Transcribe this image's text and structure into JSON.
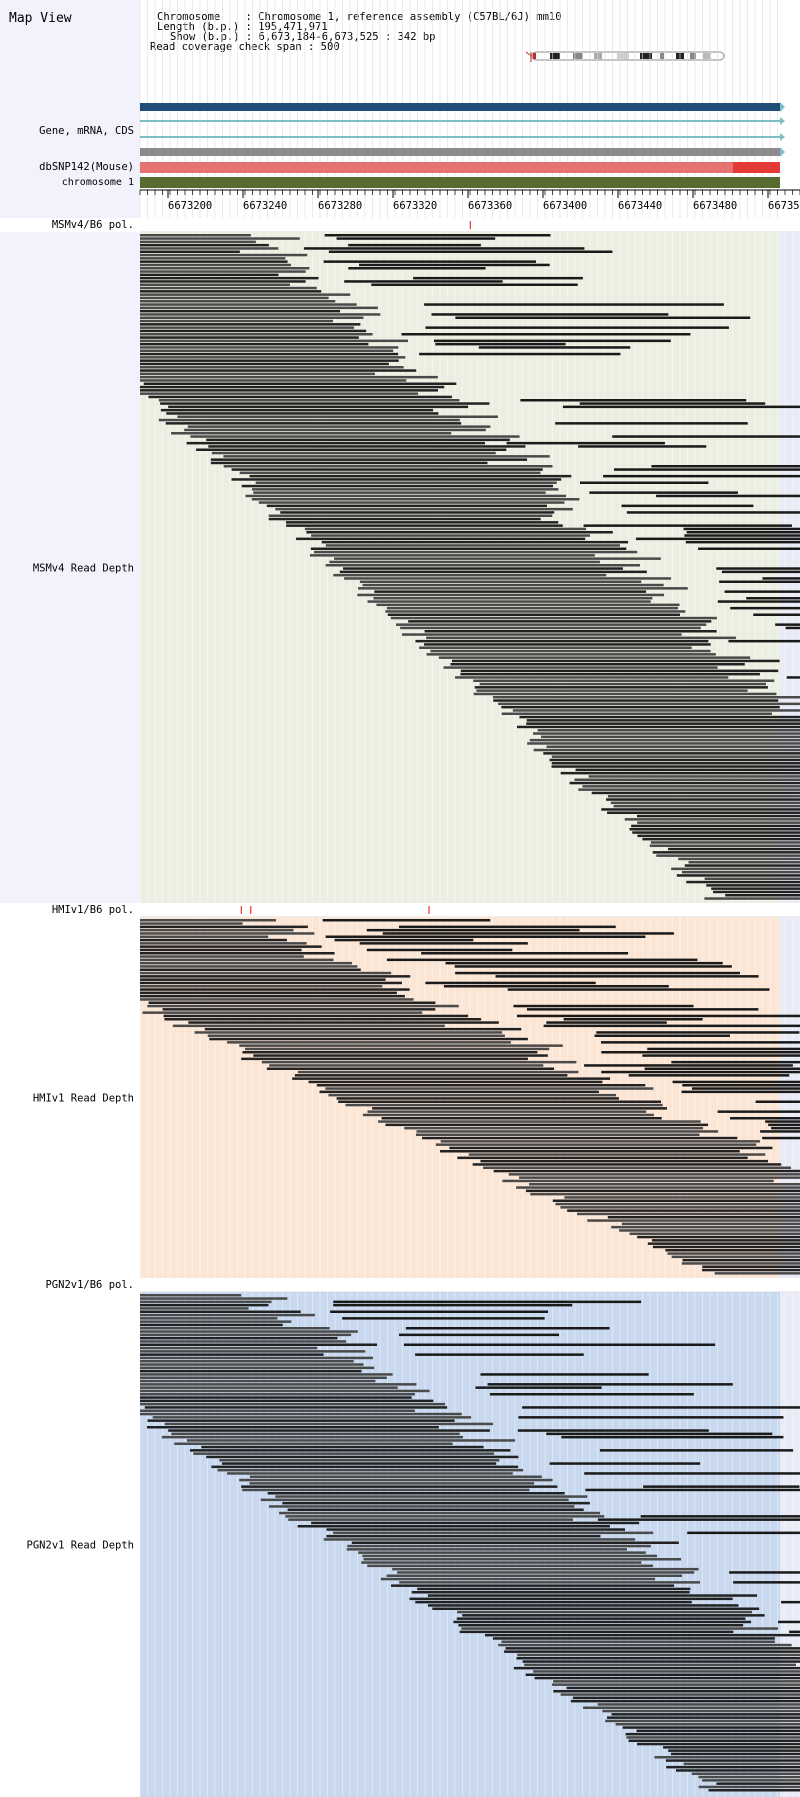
{
  "app": {
    "title": "Map View"
  },
  "info": {
    "chromosome_line": "Chromosome    : Chromosome 1, reference assembly (C57BL/6J) mm10",
    "length_line": "Length (b.p.) : 195,471,971",
    "show_line": "Show (b.p.) : 6,673,184-6,673,525 : 342 bp",
    "coverage_line": "Read coverage check span : 500"
  },
  "tracks": {
    "gene_label": "Gene, mRNA, CDS",
    "snp_label": "dbSNP142(Mouse)",
    "chrom_label": "chromosome 1"
  },
  "ruler": {
    "ticks": [
      "6673200",
      "6673240",
      "6673280",
      "6673320",
      "6673360",
      "6673400",
      "6673440",
      "6673480",
      "66735"
    ]
  },
  "samples": [
    {
      "id": "msmv4",
      "pol_label": "MSMv4/B6 pol.",
      "depth_label": "MSMv4 Read Depth",
      "pol_marks_bp": [
        6673360
      ],
      "pattern": "staircase"
    },
    {
      "id": "hmiv1",
      "pol_label": "HMIv1/B6 pol.",
      "depth_label": "HMIv1 Read Depth",
      "pol_marks_bp": [
        6673238,
        6673243,
        6673338
      ],
      "pattern": "staircase-sparse"
    },
    {
      "id": "pgn2v1",
      "pol_label": "PGN2v1/B6 pol.",
      "depth_label": "PGN2v1 Read Depth",
      "pol_marks_bp": [],
      "pattern": "staircase"
    }
  ],
  "colors": {
    "left_panel_bg": "#f2f2fc",
    "gene_track": "#1f4e79",
    "mrna_track": "#7fbfc4",
    "grey_track": "#8c8c8c",
    "snp_track": "#e57373",
    "snp_track_dark": "#e53935",
    "chrom_track": "#556b2f",
    "msmv4_bg": "#ebefe1",
    "hmiv1_bg": "#fbe6d6",
    "pgn2v1_bg": "#c8d8ee",
    "read_fill": "#4a4a4a",
    "pol_mark": "#e53935"
  }
}
